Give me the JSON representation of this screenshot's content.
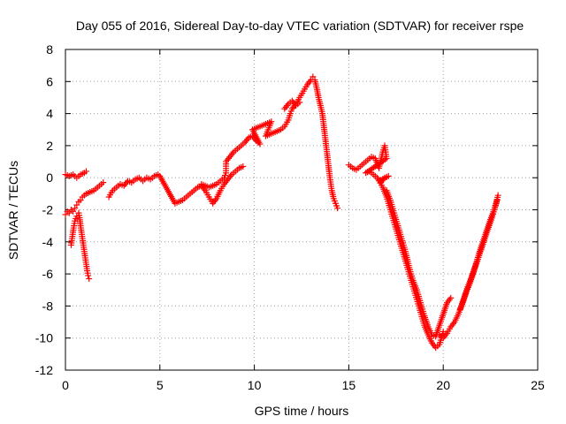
{
  "chart_data": {
    "type": "scatter",
    "title": "Day 055 of 2016, Sidereal Day-to-day VTEC variation (SDTVAR) for receiver rspe",
    "xlabel": "GPS time / hours",
    "ylabel": "SDTVAR / TECUs",
    "xlim": [
      0,
      25
    ],
    "ylim": [
      -12,
      8
    ],
    "xticks": [
      "0",
      "5",
      "10",
      "15",
      "20",
      "25"
    ],
    "yticks": [
      "-12",
      "-10",
      "-8",
      "-6",
      "-4",
      "-2",
      "0",
      "2",
      "4",
      "6",
      "8"
    ],
    "grid": true,
    "marker": "+",
    "series_color": "#ff0000",
    "series": [
      {
        "points": [
          [
            0.0,
            0.2
          ],
          [
            0.2,
            0.1
          ],
          [
            0.4,
            0.2
          ],
          [
            0.6,
            0.0
          ],
          [
            0.8,
            0.2
          ],
          [
            1.0,
            0.3
          ],
          [
            1.1,
            0.4
          ],
          [
            0.0,
            -2.3
          ],
          [
            0.1,
            -2.1
          ],
          [
            0.2,
            -2.2
          ],
          [
            0.3,
            -2.0
          ],
          [
            0.4,
            -2.1
          ],
          [
            0.5,
            -1.9
          ],
          [
            0.6,
            -1.7
          ],
          [
            0.7,
            -1.5
          ],
          [
            0.8,
            -1.4
          ],
          [
            0.9,
            -1.2
          ],
          [
            1.0,
            -1.1
          ],
          [
            1.1,
            -1.0
          ],
          [
            1.3,
            -0.9
          ],
          [
            1.5,
            -0.8
          ],
          [
            1.7,
            -0.6
          ],
          [
            1.9,
            -0.4
          ],
          [
            2.0,
            -0.3
          ],
          [
            0.3,
            -4.2
          ],
          [
            0.35,
            -3.8
          ],
          [
            0.4,
            -3.4
          ],
          [
            0.45,
            -3.0
          ],
          [
            0.5,
            -2.7
          ],
          [
            0.6,
            -2.4
          ],
          [
            0.7,
            -2.2
          ],
          [
            0.75,
            -2.5
          ],
          [
            0.8,
            -3.0
          ],
          [
            0.85,
            -3.4
          ],
          [
            0.9,
            -3.8
          ],
          [
            0.95,
            -4.2
          ],
          [
            1.0,
            -4.6
          ],
          [
            1.05,
            -5.0
          ],
          [
            1.1,
            -5.4
          ],
          [
            1.15,
            -5.8
          ],
          [
            1.2,
            -6.1
          ],
          [
            1.25,
            -6.3
          ],
          [
            2.3,
            -1.2
          ],
          [
            2.5,
            -0.8
          ],
          [
            2.7,
            -0.6
          ],
          [
            2.9,
            -0.4
          ],
          [
            3.1,
            -0.5
          ],
          [
            3.3,
            -0.2
          ],
          [
            3.5,
            -0.3
          ],
          [
            3.7,
            -0.1
          ],
          [
            3.9,
            0.0
          ],
          [
            4.1,
            -0.2
          ],
          [
            4.3,
            0.0
          ],
          [
            4.5,
            -0.1
          ],
          [
            4.7,
            0.1
          ],
          [
            4.9,
            0.2
          ],
          [
            5.0,
            0.1
          ],
          [
            5.8,
            -1.6
          ],
          [
            6.0,
            -1.5
          ],
          [
            6.2,
            -1.4
          ],
          [
            6.4,
            -1.2
          ],
          [
            6.6,
            -1.0
          ],
          [
            6.8,
            -0.8
          ],
          [
            7.0,
            -0.6
          ],
          [
            7.2,
            -0.5
          ],
          [
            7.4,
            -0.8
          ],
          [
            7.6,
            -1.2
          ],
          [
            7.8,
            -1.6
          ],
          [
            8.0,
            -1.3
          ],
          [
            8.2,
            -0.8
          ],
          [
            8.4,
            -0.4
          ],
          [
            8.6,
            -0.1
          ],
          [
            8.8,
            0.2
          ],
          [
            9.0,
            0.4
          ],
          [
            9.2,
            0.6
          ],
          [
            9.4,
            0.7
          ],
          [
            7.2,
            -0.4
          ],
          [
            7.4,
            -0.5
          ],
          [
            7.6,
            -0.6
          ],
          [
            7.8,
            -0.5
          ],
          [
            8.0,
            -0.4
          ],
          [
            8.2,
            -0.2
          ],
          [
            8.4,
            0.0
          ],
          [
            8.5,
            0.3
          ],
          [
            8.5,
            1.0
          ],
          [
            8.7,
            1.3
          ],
          [
            8.9,
            1.6
          ],
          [
            9.1,
            1.8
          ],
          [
            9.3,
            2.0
          ],
          [
            9.5,
            2.2
          ],
          [
            9.7,
            2.5
          ],
          [
            9.9,
            2.6
          ],
          [
            10.1,
            2.3
          ],
          [
            10.3,
            2.1
          ],
          [
            9.9,
            3.0
          ],
          [
            10.1,
            3.1
          ],
          [
            10.3,
            3.2
          ],
          [
            10.5,
            3.3
          ],
          [
            10.7,
            3.4
          ],
          [
            10.9,
            3.5
          ],
          [
            10.6,
            2.6
          ],
          [
            10.8,
            2.7
          ],
          [
            11.0,
            2.8
          ],
          [
            11.2,
            2.9
          ],
          [
            11.4,
            3.0
          ],
          [
            11.6,
            3.2
          ],
          [
            11.8,
            3.6
          ],
          [
            11.9,
            4.0
          ],
          [
            12.0,
            4.3
          ],
          [
            12.2,
            4.6
          ],
          [
            12.4,
            5.0
          ],
          [
            12.6,
            5.4
          ],
          [
            12.8,
            5.8
          ],
          [
            13.0,
            6.1
          ],
          [
            13.1,
            6.3
          ],
          [
            13.2,
            6.1
          ],
          [
            13.3,
            5.6
          ],
          [
            13.4,
            5.0
          ],
          [
            13.5,
            4.5
          ],
          [
            13.6,
            4.0
          ],
          [
            13.7,
            3.0
          ],
          [
            13.8,
            2.0
          ],
          [
            13.9,
            1.0
          ],
          [
            14.0,
            0.0
          ],
          [
            14.1,
            -0.8
          ],
          [
            14.2,
            -1.3
          ],
          [
            14.3,
            -1.6
          ],
          [
            14.4,
            -1.9
          ],
          [
            11.6,
            4.3
          ],
          [
            11.8,
            4.6
          ],
          [
            12.0,
            4.8
          ],
          [
            12.2,
            4.5
          ],
          [
            12.4,
            4.7
          ],
          [
            15.0,
            0.8
          ],
          [
            15.2,
            0.6
          ],
          [
            15.4,
            0.5
          ],
          [
            15.6,
            0.7
          ],
          [
            15.8,
            0.9
          ],
          [
            16.0,
            1.1
          ],
          [
            16.2,
            1.3
          ],
          [
            16.4,
            1.2
          ],
          [
            16.6,
            0.6
          ],
          [
            16.8,
            1.6
          ],
          [
            16.9,
            2.0
          ],
          [
            17.0,
            1.2
          ],
          [
            15.9,
            0.3
          ],
          [
            16.1,
            0.4
          ],
          [
            16.3,
            0.2
          ],
          [
            16.5,
            0.0
          ],
          [
            16.7,
            -0.3
          ],
          [
            16.9,
            0.0
          ],
          [
            17.1,
            0.1
          ],
          [
            16.6,
            -0.2
          ],
          [
            16.8,
            -0.6
          ],
          [
            17.0,
            -1.2
          ],
          [
            17.2,
            -2.0
          ],
          [
            17.4,
            -2.8
          ],
          [
            17.6,
            -3.6
          ],
          [
            17.8,
            -4.4
          ],
          [
            18.0,
            -5.2
          ],
          [
            18.2,
            -6.0
          ],
          [
            18.4,
            -6.8
          ],
          [
            18.6,
            -7.6
          ],
          [
            18.8,
            -8.4
          ],
          [
            19.0,
            -9.2
          ],
          [
            19.2,
            -9.8
          ],
          [
            19.4,
            -10.3
          ],
          [
            19.6,
            -10.6
          ],
          [
            19.8,
            -10.4
          ],
          [
            20.0,
            -9.6
          ],
          [
            17.0,
            -0.8
          ],
          [
            17.2,
            -1.4
          ],
          [
            17.4,
            -2.2
          ],
          [
            17.6,
            -3.0
          ],
          [
            17.8,
            -3.8
          ],
          [
            18.0,
            -4.6
          ],
          [
            18.2,
            -5.6
          ],
          [
            18.4,
            -6.4
          ],
          [
            18.6,
            -7.0
          ],
          [
            18.8,
            -7.8
          ],
          [
            19.0,
            -8.6
          ],
          [
            19.2,
            -9.3
          ],
          [
            19.4,
            -9.8
          ],
          [
            19.6,
            -9.9
          ],
          [
            19.8,
            -9.2
          ],
          [
            20.0,
            -8.5
          ],
          [
            20.2,
            -7.8
          ],
          [
            20.4,
            -7.5
          ],
          [
            19.8,
            -9.8
          ],
          [
            20.0,
            -10.0
          ],
          [
            20.2,
            -9.7
          ],
          [
            20.4,
            -9.3
          ],
          [
            20.6,
            -9.0
          ],
          [
            20.8,
            -8.5
          ],
          [
            21.0,
            -7.9
          ],
          [
            21.2,
            -7.2
          ],
          [
            21.4,
            -6.6
          ],
          [
            21.6,
            -5.9
          ],
          [
            21.8,
            -5.2
          ],
          [
            22.0,
            -4.5
          ],
          [
            22.2,
            -3.8
          ],
          [
            22.4,
            -3.1
          ],
          [
            22.6,
            -2.4
          ],
          [
            22.8,
            -1.6
          ],
          [
            22.9,
            -1.1
          ],
          [
            20.9,
            -8.2
          ],
          [
            21.1,
            -7.5
          ],
          [
            21.3,
            -6.8
          ],
          [
            21.5,
            -6.2
          ],
          [
            21.7,
            -5.5
          ],
          [
            21.9,
            -4.7
          ],
          [
            22.1,
            -4.0
          ],
          [
            22.3,
            -3.3
          ],
          [
            22.5,
            -2.6
          ],
          [
            22.7,
            -2.0
          ],
          [
            22.85,
            -1.4
          ]
        ]
      }
    ]
  }
}
